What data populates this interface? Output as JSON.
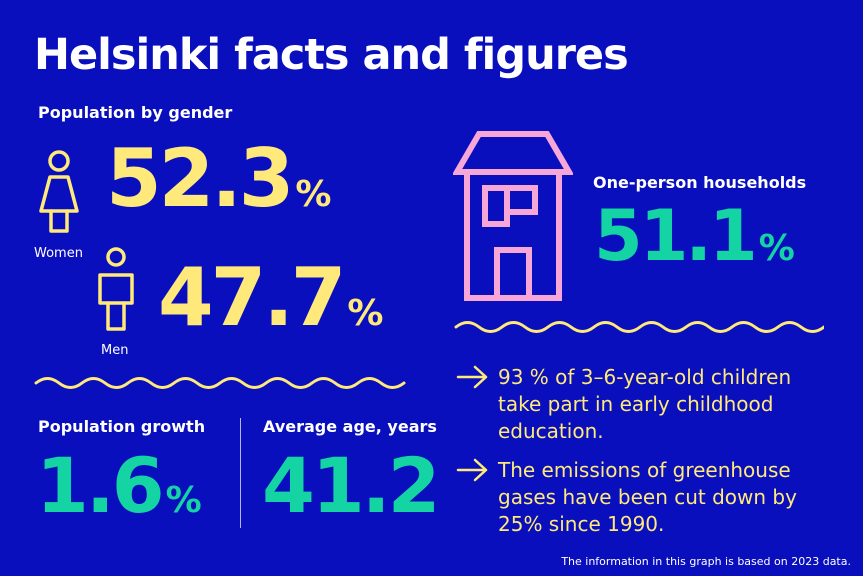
{
  "title": "Helsinki facts and figures",
  "gender": {
    "label": "Population by gender",
    "women": {
      "value": "52.3",
      "unit": "%",
      "label": "Women",
      "icon": "woman-icon"
    },
    "men": {
      "value": "47.7",
      "unit": "%",
      "label": "Men",
      "icon": "man-icon"
    }
  },
  "households": {
    "label": "One-person households",
    "value": "51.1",
    "unit": "%",
    "icon": "house-icon"
  },
  "growth": {
    "label": "Population growth",
    "value": "1.6",
    "unit": "%"
  },
  "age": {
    "label": "Average age, years",
    "value": "41.2"
  },
  "facts": [
    "93 % of 3–6-year-old children take part in early childhood education.",
    "The emissions of greenhouse gases have been cut down by 25% since 1990."
  ],
  "footer": "The information in this graph is based on 2023 data.",
  "colors": {
    "background": "#0a0fbd",
    "yellow": "#ffe97a",
    "green": "#14d4a4",
    "pink": "#f7a6d8",
    "white": "#ffffff"
  }
}
